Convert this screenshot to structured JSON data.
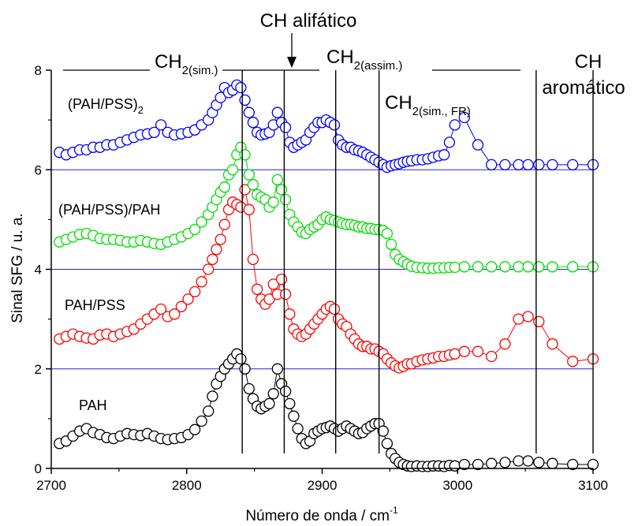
{
  "chart_data": {
    "type": "scatter",
    "title": "",
    "xlabel": "Número de onda / cm",
    "xlabel_sup": "-1",
    "ylabel": "Sinal SFG / u. a.",
    "xlim": [
      2700,
      3100
    ],
    "ylim": [
      0,
      8
    ],
    "xticks": [
      2700,
      2800,
      2900,
      3000,
      3100
    ],
    "yticks": [
      0,
      2,
      4,
      6,
      8
    ],
    "grid": false,
    "baselines": [
      2,
      4,
      6
    ],
    "series": [
      {
        "name": "PAH",
        "color": "#000000",
        "x": [
          2706,
          2711,
          2716,
          2721,
          2726,
          2731,
          2736,
          2741,
          2746,
          2751,
          2756,
          2761,
          2766,
          2771,
          2776,
          2781,
          2786,
          2791,
          2796,
          2801,
          2806,
          2811,
          2816,
          2819,
          2822,
          2825,
          2828,
          2831,
          2834,
          2837,
          2840,
          2843,
          2846,
          2849,
          2852,
          2855,
          2858,
          2861,
          2864,
          2867,
          2870,
          2873,
          2876,
          2879,
          2882,
          2885,
          2888,
          2891,
          2894,
          2897,
          2900,
          2903,
          2906,
          2909,
          2912,
          2915,
          2918,
          2921,
          2924,
          2927,
          2930,
          2933,
          2936,
          2939,
          2942,
          2945,
          2948,
          2951,
          2954,
          2957,
          2960,
          2963,
          2966,
          2970,
          2974,
          2978,
          2982,
          2986,
          2990,
          2994,
          2998,
          3005,
          3015,
          3025,
          3035,
          3045,
          3052,
          3060,
          3070,
          3085,
          3100
        ],
        "values": [
          0.5,
          0.55,
          0.65,
          0.75,
          0.8,
          0.72,
          0.68,
          0.62,
          0.6,
          0.65,
          0.7,
          0.68,
          0.66,
          0.7,
          0.65,
          0.6,
          0.58,
          0.6,
          0.62,
          0.68,
          0.78,
          0.95,
          1.15,
          1.45,
          1.7,
          1.85,
          2.0,
          2.1,
          2.2,
          2.3,
          2.2,
          2.0,
          1.6,
          1.4,
          1.25,
          1.2,
          1.25,
          1.3,
          1.5,
          2.0,
          1.7,
          1.55,
          1.3,
          1.05,
          0.8,
          0.6,
          0.5,
          0.55,
          0.7,
          0.75,
          0.8,
          0.82,
          0.85,
          0.8,
          0.75,
          0.8,
          0.85,
          0.8,
          0.75,
          0.7,
          0.72,
          0.8,
          0.85,
          0.9,
          0.9,
          0.75,
          0.5,
          0.3,
          0.2,
          0.12,
          0.08,
          0.05,
          0.04,
          0.05,
          0.04,
          0.04,
          0.05,
          0.05,
          0.04,
          0.06,
          0.05,
          0.08,
          0.08,
          0.1,
          0.12,
          0.15,
          0.15,
          0.12,
          0.1,
          0.08,
          0.08
        ]
      },
      {
        "name": "PAH/PSS",
        "color": "#ff0000",
        "x": [
          2706,
          2711,
          2716,
          2721,
          2726,
          2731,
          2736,
          2741,
          2746,
          2751,
          2756,
          2761,
          2766,
          2771,
          2776,
          2781,
          2786,
          2791,
          2796,
          2801,
          2806,
          2811,
          2816,
          2819,
          2822,
          2825,
          2828,
          2831,
          2834,
          2837,
          2840,
          2843,
          2846,
          2849,
          2852,
          2855,
          2858,
          2861,
          2864,
          2867,
          2870,
          2873,
          2876,
          2879,
          2882,
          2885,
          2888,
          2891,
          2894,
          2897,
          2900,
          2903,
          2906,
          2909,
          2912,
          2915,
          2918,
          2921,
          2924,
          2927,
          2930,
          2933,
          2936,
          2939,
          2942,
          2945,
          2948,
          2951,
          2954,
          2957,
          2960,
          2963,
          2966,
          2970,
          2974,
          2978,
          2982,
          2986,
          2990,
          2994,
          2998,
          3005,
          3015,
          3025,
          3035,
          3045,
          3052,
          3060,
          3070,
          3085,
          3100
        ],
        "values": [
          2.6,
          2.65,
          2.7,
          2.65,
          2.62,
          2.6,
          2.68,
          2.7,
          2.65,
          2.7,
          2.75,
          2.8,
          2.9,
          3.0,
          3.1,
          3.2,
          3.05,
          3.1,
          3.25,
          3.4,
          3.55,
          3.75,
          4.0,
          4.2,
          4.4,
          4.6,
          4.9,
          5.2,
          5.35,
          5.3,
          5.25,
          5.6,
          5.2,
          4.2,
          3.6,
          3.4,
          3.3,
          3.4,
          3.7,
          3.5,
          3.8,
          3.5,
          3.1,
          2.8,
          2.7,
          2.65,
          2.7,
          2.8,
          2.9,
          3.0,
          3.1,
          3.2,
          3.25,
          3.2,
          3.0,
          2.9,
          2.85,
          2.7,
          2.6,
          2.5,
          2.45,
          2.45,
          2.4,
          2.4,
          2.35,
          2.3,
          2.2,
          2.12,
          2.06,
          2.02,
          2.05,
          2.1,
          2.1,
          2.15,
          2.18,
          2.2,
          2.22,
          2.25,
          2.25,
          2.28,
          2.3,
          2.35,
          2.35,
          2.25,
          2.5,
          3.0,
          3.05,
          2.95,
          2.5,
          2.15,
          2.2
        ]
      },
      {
        "name": "(PAH/PSS)/PAH",
        "color": "#00dd00",
        "x": [
          2706,
          2711,
          2716,
          2721,
          2726,
          2731,
          2736,
          2741,
          2746,
          2751,
          2756,
          2761,
          2766,
          2771,
          2776,
          2781,
          2786,
          2791,
          2796,
          2801,
          2806,
          2811,
          2816,
          2819,
          2822,
          2825,
          2828,
          2831,
          2834,
          2837,
          2840,
          2843,
          2846,
          2849,
          2852,
          2855,
          2858,
          2861,
          2864,
          2867,
          2870,
          2873,
          2876,
          2879,
          2882,
          2885,
          2888,
          2891,
          2894,
          2897,
          2900,
          2903,
          2906,
          2909,
          2912,
          2915,
          2918,
          2921,
          2924,
          2927,
          2930,
          2933,
          2936,
          2939,
          2942,
          2945,
          2948,
          2951,
          2954,
          2957,
          2960,
          2963,
          2966,
          2970,
          2974,
          2978,
          2982,
          2986,
          2990,
          2994,
          2998,
          3005,
          3015,
          3025,
          3035,
          3045,
          3052,
          3060,
          3070,
          3085,
          3100
        ],
        "values": [
          4.55,
          4.6,
          4.65,
          4.7,
          4.72,
          4.68,
          4.62,
          4.6,
          4.6,
          4.58,
          4.55,
          4.55,
          4.58,
          4.55,
          4.52,
          4.5,
          4.55,
          4.6,
          4.65,
          4.72,
          4.8,
          4.95,
          5.1,
          5.25,
          5.4,
          5.55,
          5.65,
          5.9,
          6.0,
          6.3,
          6.45,
          6.3,
          5.9,
          5.7,
          5.5,
          5.45,
          5.4,
          5.25,
          5.35,
          5.8,
          5.6,
          5.4,
          5.1,
          4.95,
          4.85,
          4.75,
          4.72,
          4.8,
          4.85,
          4.9,
          5.0,
          5.05,
          5.0,
          4.98,
          4.95,
          4.92,
          4.9,
          4.9,
          4.88,
          4.85,
          4.85,
          4.82,
          4.82,
          4.8,
          4.8,
          4.78,
          4.72,
          4.5,
          4.3,
          4.2,
          4.15,
          4.1,
          4.06,
          4.04,
          4.03,
          4.02,
          4.02,
          4.03,
          4.03,
          4.04,
          4.04,
          4.05,
          4.05,
          4.05,
          4.05,
          4.05,
          4.05,
          4.05,
          4.05,
          4.05,
          4.05
        ]
      },
      {
        "name": "(PAH/PSS)",
        "name_sub": "2",
        "color": "#0000ff",
        "x": [
          2706,
          2711,
          2716,
          2721,
          2726,
          2731,
          2736,
          2741,
          2746,
          2751,
          2756,
          2761,
          2766,
          2771,
          2776,
          2781,
          2786,
          2791,
          2796,
          2801,
          2806,
          2811,
          2816,
          2819,
          2822,
          2825,
          2828,
          2831,
          2834,
          2837,
          2840,
          2843,
          2846,
          2849,
          2852,
          2855,
          2858,
          2861,
          2864,
          2867,
          2870,
          2873,
          2876,
          2879,
          2882,
          2885,
          2888,
          2891,
          2894,
          2897,
          2900,
          2903,
          2906,
          2909,
          2912,
          2915,
          2918,
          2921,
          2924,
          2927,
          2930,
          2933,
          2936,
          2939,
          2942,
          2945,
          2948,
          2951,
          2954,
          2957,
          2960,
          2963,
          2966,
          2970,
          2974,
          2978,
          2982,
          2986,
          2990,
          2994,
          2998,
          3005,
          3015,
          3025,
          3035,
          3045,
          3052,
          3060,
          3070,
          3085,
          3100
        ],
        "values": [
          6.35,
          6.3,
          6.35,
          6.4,
          6.4,
          6.45,
          6.45,
          6.5,
          6.5,
          6.55,
          6.6,
          6.65,
          6.7,
          6.72,
          6.75,
          6.9,
          6.75,
          6.7,
          6.72,
          6.75,
          6.8,
          6.9,
          7.0,
          7.15,
          7.3,
          7.45,
          7.65,
          7.55,
          7.6,
          7.7,
          7.65,
          7.4,
          7.15,
          6.95,
          6.75,
          6.7,
          6.72,
          6.75,
          6.9,
          7.15,
          6.95,
          6.85,
          6.55,
          6.45,
          6.5,
          6.55,
          6.6,
          6.75,
          6.85,
          6.95,
          6.95,
          7.0,
          6.95,
          6.9,
          6.6,
          6.5,
          6.45,
          6.45,
          6.4,
          6.38,
          6.35,
          6.3,
          6.25,
          6.2,
          6.15,
          6.1,
          6.05,
          6.08,
          6.1,
          6.12,
          6.15,
          6.17,
          6.18,
          6.2,
          6.2,
          6.22,
          6.25,
          6.28,
          6.3,
          6.55,
          6.9,
          7.05,
          6.5,
          6.1,
          6.1,
          6.1,
          6.1,
          6.1,
          6.1,
          6.1,
          6.1
        ]
      }
    ],
    "markers": [
      2841,
      2872,
      2910,
      2942,
      3058,
      3100
    ],
    "annotations": {
      "ch_aliphatic": "CH alifático",
      "ch2_sym_main": "CH",
      "ch2_sym_sub": "2(sim.)",
      "ch2_asym_main": "CH",
      "ch2_asym_sub": "2(assim.)",
      "ch2_fr_main": "CH",
      "ch2_fr_sub": "2(sim., FR)",
      "ch_arom_1": "CH",
      "ch_arom_2": "aromático"
    }
  }
}
